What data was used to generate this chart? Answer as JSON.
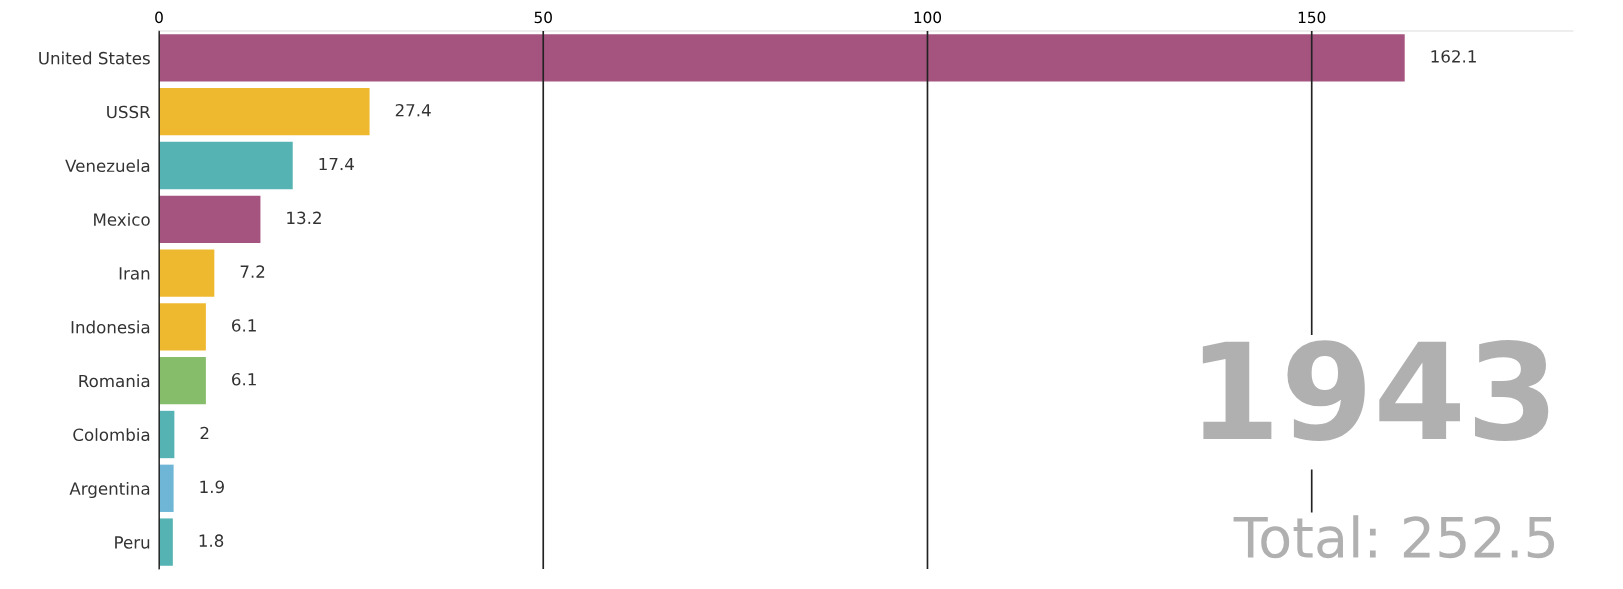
{
  "chart_data": {
    "type": "bar",
    "orientation": "horizontal",
    "categories": [
      "United States",
      "USSR",
      "Venezuela",
      "Mexico",
      "Iran",
      "Indonesia",
      "Romania",
      "Colombia",
      "Argentina",
      "Peru"
    ],
    "values": [
      162.1,
      27.4,
      17.4,
      13.2,
      7.2,
      6.1,
      6.1,
      2,
      1.9,
      1.8
    ],
    "colors": [
      "#a4547f",
      "#efb92f",
      "#56b3b3",
      "#a4547f",
      "#efb92f",
      "#efb92f",
      "#86bd6a",
      "#56b3b3",
      "#6fb6d6",
      "#56b3b3"
    ],
    "xlim": [
      0,
      184
    ],
    "xticks": [
      0,
      50,
      100,
      150
    ],
    "grid": "x",
    "data_labels": true,
    "annotations": [
      "1943",
      "Total: 252.5"
    ]
  }
}
